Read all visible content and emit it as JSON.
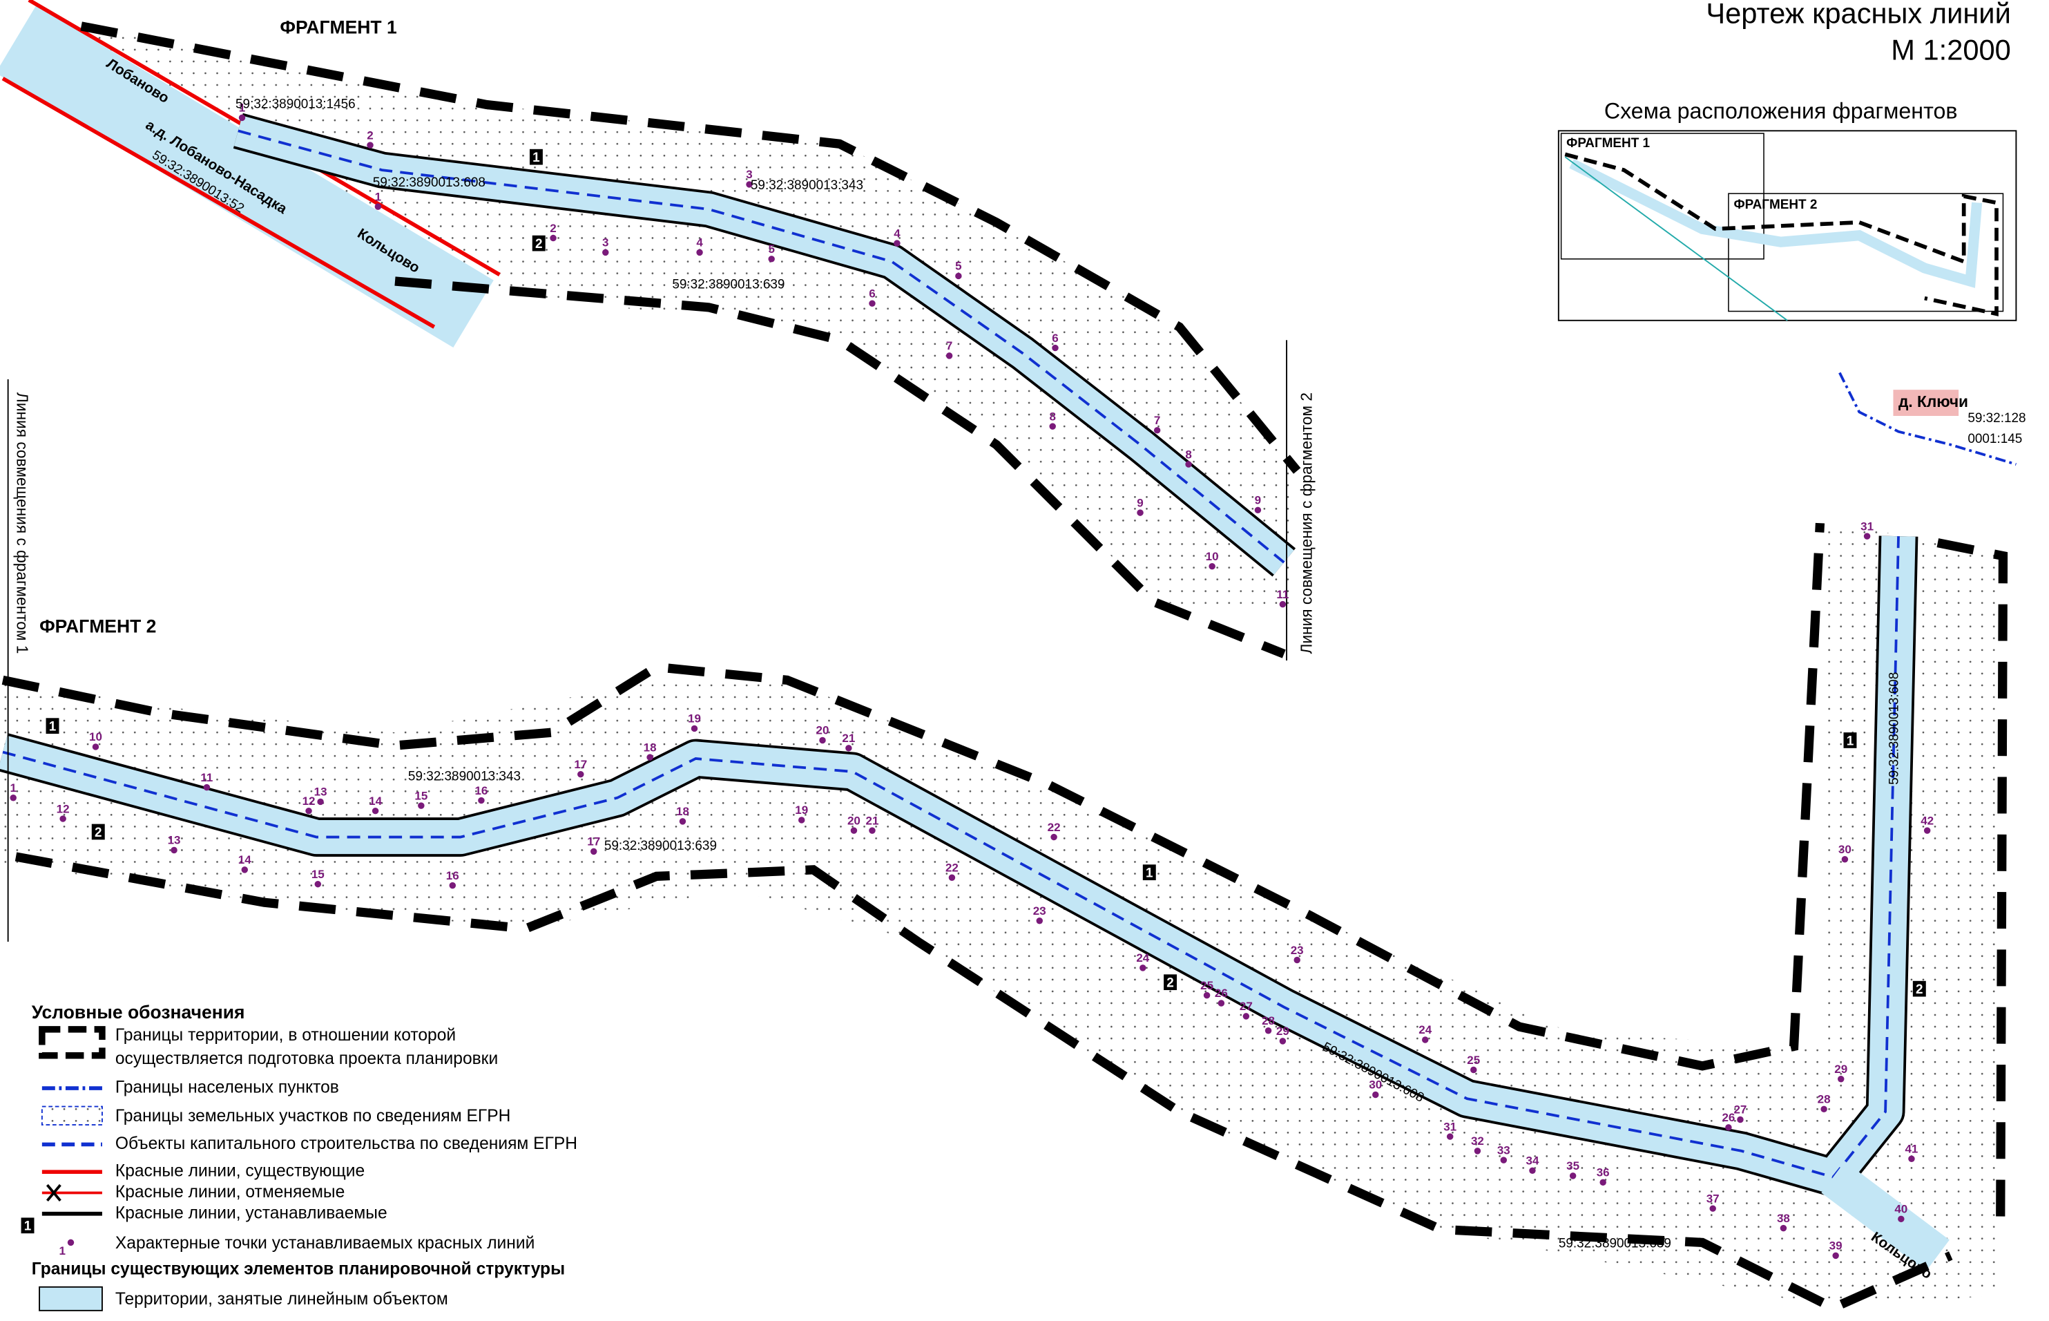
{
  "title": "Чертеж красных линий",
  "scale": "М 1:2000",
  "inset": {
    "title": "Схема расположения фрагментов",
    "fragment_1": "ФРАГМЕНТ 1",
    "fragment_2": "ФРАГМЕНТ 2"
  },
  "fragment_1": {
    "title": "ФРАГМЕНТ 1",
    "road_from": "Лобаново",
    "road_name": "а.д. Лобаново-Насадка",
    "road_to": "Кольцово",
    "road_parcel": "59:32:3890013:52",
    "join_line": "Линия совмещения с фрагментом 2",
    "parcels": [
      "59:32:3890013:1456",
      "59:32:3890013:608",
      "59:32:3890013:343",
      "59:32:3890013:639"
    ],
    "line_markers": [
      "1",
      "2"
    ],
    "points": [
      "1",
      "2",
      "1",
      "2",
      "3",
      "3",
      "4",
      "5",
      "4",
      "5",
      "6",
      "7",
      "6",
      "8",
      "7",
      "8",
      "9",
      "9",
      "10",
      "11"
    ]
  },
  "fragment_2": {
    "title": "ФРАГМЕНТ 2",
    "join_line": "Линия совмещения с фрагментом 1",
    "village": "д. Ключи",
    "village_parcel": [
      "59:32:128",
      "0001:145"
    ],
    "road_to": "Кольцово",
    "parcels": [
      "59:32:3890013:343",
      "59:32:3890013:639",
      "59:32:3890013:608",
      "59:32:3890013:639",
      "59:32:3890013:608"
    ],
    "line_markers": [
      "1",
      "2",
      "1",
      "2",
      "1",
      "2"
    ],
    "points": [
      "1",
      "10",
      "12",
      "11",
      "13",
      "12",
      "13",
      "14",
      "14",
      "15",
      "15",
      "16",
      "16",
      "17",
      "17",
      "18",
      "18",
      "19",
      "19",
      "20",
      "21",
      "20",
      "21",
      "22",
      "22",
      "23",
      "24",
      "25",
      "26",
      "27",
      "28",
      "29",
      "23",
      "24",
      "25",
      "30",
      "31",
      "32",
      "33",
      "34",
      "35",
      "36",
      "37",
      "38",
      "39",
      "40",
      "41",
      "26",
      "27",
      "28",
      "29",
      "30",
      "42",
      "31"
    ]
  },
  "legend": {
    "title": "Условные обозначения",
    "items": [
      "Границы территории, в отношении которой",
      "осуществляется подготовка проекта планировки",
      "Границы населеных пунктов",
      "Границы земельных участков по сведениям ЕГРН",
      "Объекты капитального строительства по сведениям ЕГРН",
      "Красные линии, существующие",
      "Красные линии, отменяемые",
      "Красные линии, устанавливаемые",
      "Характерные точки устанавливаемых красных линий"
    ],
    "marker_sample": "1",
    "point_sample": "1",
    "section": "Границы существующих элементов планировочной структуры",
    "territory": "Территории, занятые линейным объектом"
  }
}
